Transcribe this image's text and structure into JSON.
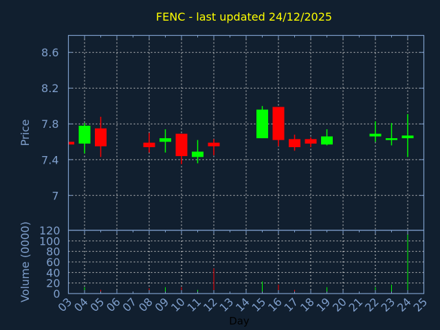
{
  "chart_data": [
    {
      "type": "candlestick",
      "title": "FENC - last updated 24/12/2025",
      "ylabel": "Price",
      "ylim": [
        6.61,
        8.79
      ],
      "yticks": [
        "7",
        "7.4",
        "7.8",
        "8.2",
        "8.6"
      ],
      "grid": true,
      "colors": {
        "up": "#00ff00",
        "down": "#ff0000",
        "title": "#ffff00",
        "axis": "#7f9fcc",
        "background": "#111f2f"
      },
      "days": [
        "03",
        "04",
        "05",
        "08",
        "09",
        "10",
        "11",
        "12",
        "15",
        "16",
        "17",
        "18",
        "19",
        "22",
        "23",
        "24"
      ],
      "open": [
        7.6,
        7.58,
        7.75,
        7.59,
        7.6,
        7.69,
        7.43,
        7.59,
        7.64,
        7.99,
        7.63,
        7.63,
        7.57,
        7.66,
        7.62,
        7.64
      ],
      "high": [
        7.6,
        7.81,
        7.88,
        7.7,
        7.74,
        7.69,
        7.62,
        7.63,
        8.0,
        7.99,
        7.68,
        7.65,
        7.74,
        7.83,
        7.81,
        7.91
      ],
      "low": [
        7.57,
        7.47,
        7.43,
        7.48,
        7.48,
        7.35,
        7.36,
        7.45,
        7.64,
        7.55,
        7.5,
        7.54,
        7.56,
        7.6,
        7.56,
        7.43
      ],
      "close": [
        7.57,
        7.78,
        7.55,
        7.54,
        7.64,
        7.44,
        7.49,
        7.55,
        7.96,
        7.62,
        7.54,
        7.58,
        7.66,
        7.69,
        7.64,
        7.67
      ]
    },
    {
      "type": "bar",
      "xlabel": "Day",
      "ylabel": "Volume (0000)",
      "ylim": [
        0,
        120
      ],
      "yticks": [
        "0",
        "20",
        "40",
        "60",
        "80",
        "100",
        "120"
      ],
      "xticks": [
        "03",
        "04",
        "05",
        "06",
        "07",
        "08",
        "09",
        "10",
        "11",
        "12",
        "13",
        "14",
        "15",
        "16",
        "17",
        "18",
        "19",
        "20",
        "21",
        "22",
        "23",
        "24",
        "25"
      ],
      "grid": true,
      "days": [
        "04",
        "05",
        "08",
        "09",
        "10",
        "11",
        "12",
        "15",
        "16",
        "17",
        "18",
        "19",
        "22",
        "23",
        "24"
      ],
      "values": [
        12,
        7,
        10,
        12,
        12,
        7,
        48,
        23,
        17,
        7,
        6,
        12,
        12,
        17,
        112
      ],
      "direction": [
        "up",
        "down",
        "down",
        "up",
        "down",
        "up",
        "down",
        "up",
        "down",
        "down",
        "down",
        "up",
        "up",
        "up",
        "up"
      ]
    }
  ]
}
